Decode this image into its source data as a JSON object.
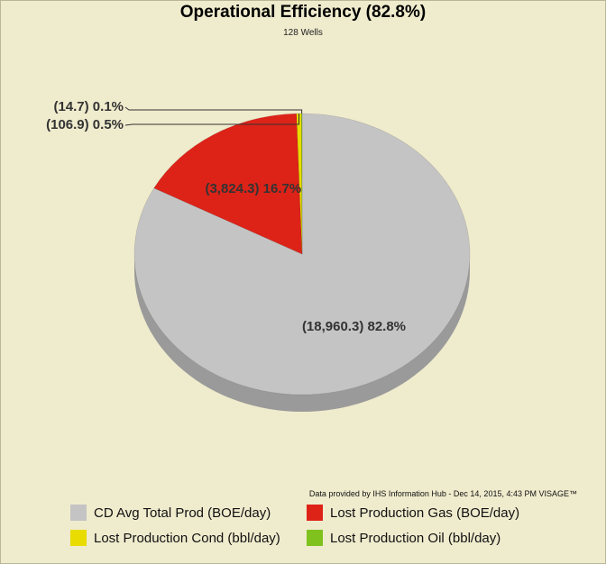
{
  "chart_data": {
    "type": "pie",
    "title": "Operational Efficiency (82.8%)",
    "subtitle": "128 Wells",
    "slices": [
      {
        "name": "CD Avg Total Prod (BOE/day)",
        "value": 18960.3,
        "percent": 82.8,
        "label": "(18,960.3) 82.8%",
        "color": "#c4c4c4",
        "side_color": "#9a9a9a"
      },
      {
        "name": "Lost Production Gas (BOE/day)",
        "value": 3824.3,
        "percent": 16.7,
        "label": "(3,824.3) 16.7%",
        "color": "#dd2318",
        "side_color": "#a01a12"
      },
      {
        "name": "Lost Production Cond (bbl/day)",
        "value": 106.9,
        "percent": 0.5,
        "label": "(106.9) 0.5%",
        "color": "#e8dc00",
        "side_color": "#aaa100"
      },
      {
        "name": "Lost Production Oil (bbl/day)",
        "value": 14.7,
        "percent": 0.1,
        "label": "(14.7) 0.1%",
        "color": "#7fc21e",
        "side_color": "#5c8d15"
      }
    ],
    "legend_position": "bottom"
  },
  "credit": "Data provided by IHS Information Hub - Dec 14, 2015, 4:43 PM  VISAGE™"
}
